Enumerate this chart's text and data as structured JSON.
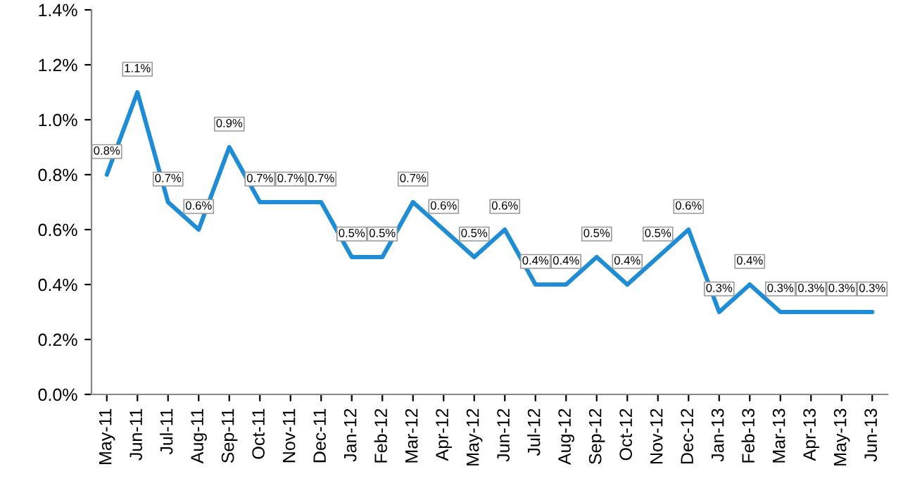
{
  "chart_data": {
    "type": "line",
    "categories": [
      "May-11",
      "Jun-11",
      "Jul-11",
      "Aug-11",
      "Sep-11",
      "Oct-11",
      "Nov-11",
      "Dec-11",
      "Jan-12",
      "Feb-12",
      "Mar-12",
      "Apr-12",
      "May-12",
      "Jun-12",
      "Jul-12",
      "Aug-12",
      "Sep-12",
      "Oct-12",
      "Nov-12",
      "Dec-12",
      "Jan-13",
      "Feb-13",
      "Mar-13",
      "Apr-13",
      "May-13",
      "Jun-13"
    ],
    "series": [
      {
        "color": "#1f8dd6",
        "values": [
          0.8,
          1.1,
          0.7,
          0.6,
          0.9,
          0.7,
          0.7,
          0.7,
          0.5,
          0.5,
          0.7,
          0.6,
          0.5,
          0.6,
          0.4,
          0.4,
          0.5,
          0.4,
          0.5,
          0.6,
          0.3,
          0.4,
          0.3,
          0.3,
          0.3,
          0.3
        ],
        "value_labels": [
          "0.8%",
          "1.1%",
          "0.7%",
          "0.6%",
          "0.9%",
          "0.7%",
          "0.7%",
          "0.7%",
          "0.5%",
          "0.5%",
          "0.7%",
          "0.6%",
          "0.5%",
          "0.6%",
          "0.4%",
          "0.4%",
          "0.5%",
          "0.4%",
          "0.5%",
          "0.6%",
          "0.3%",
          "0.4%",
          "0.3%",
          "0.3%",
          "0.3%",
          "0.3%"
        ]
      }
    ],
    "ylim": [
      0,
      1.4
    ],
    "yticks": [
      {
        "value": 0,
        "label": "0.0%"
      },
      {
        "value": 0.2,
        "label": "0.2%"
      },
      {
        "value": 0.4,
        "label": "0.4%"
      },
      {
        "value": 0.6,
        "label": "0.6%"
      },
      {
        "value": 0.8,
        "label": "0.8%"
      },
      {
        "value": 1.0,
        "label": "1.0%"
      },
      {
        "value": 1.2,
        "label": "1.2%"
      },
      {
        "value": 1.4,
        "label": "1.4%"
      }
    ],
    "grid": false,
    "legend": false,
    "marker": "none",
    "line_style": "solid"
  }
}
